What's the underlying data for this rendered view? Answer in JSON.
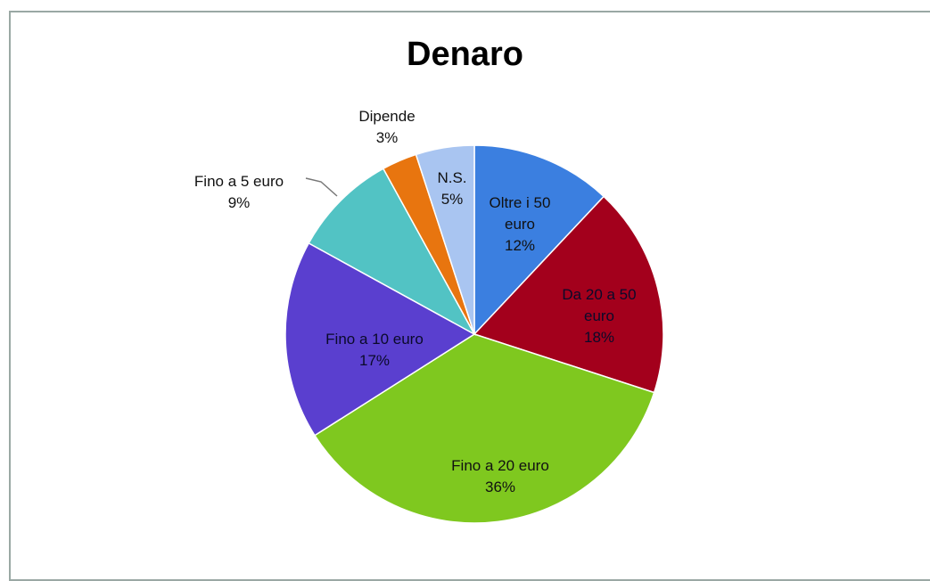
{
  "chart_data": {
    "type": "pie",
    "title": "Denaro",
    "categories": [
      "Oltre i 50 euro",
      "Da 20 a 50 euro",
      "Fino a 20 euro",
      "Fino a 10 euro",
      "Fino a 5 euro",
      "Dipende",
      "N.S."
    ],
    "values": [
      12,
      18,
      36,
      17,
      9,
      3,
      5
    ],
    "value_labels": [
      "12%",
      "18%",
      "36%",
      "17%",
      "9%",
      "3%",
      "5%"
    ],
    "colors": [
      "#3b7fe0",
      "#a3001c",
      "#7fc81f",
      "#5a3fcf",
      "#52c3c4",
      "#e8750f",
      "#a9c5f1"
    ]
  }
}
